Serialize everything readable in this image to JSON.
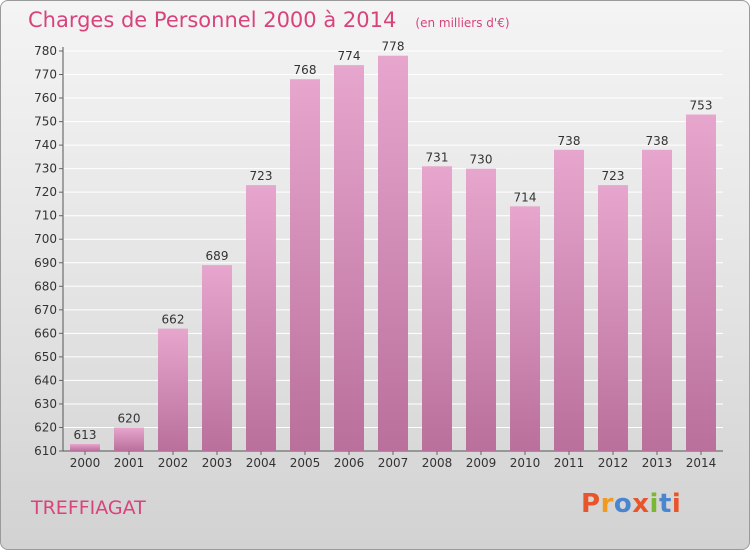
{
  "header": {
    "title": "Charges de Personnel 2000 à 2014",
    "subtitle": "(en milliers d'€)"
  },
  "footer": {
    "place": "TREFFIAGAT",
    "brand": "Proxiti"
  },
  "colors": {
    "title": "#d9437b",
    "bar_top": "#e7a6cd",
    "bar_bottom": "#b9709b",
    "grid": "#ffffff",
    "logo_letters": [
      "#e8552b",
      "#f29a1f",
      "#4a86d0",
      "#e8552b",
      "#7ab833",
      "#4a86d0",
      "#e8552b"
    ]
  },
  "chart_data": {
    "type": "bar",
    "title": "Charges de Personnel 2000 à 2014",
    "subtitle": "(en milliers d'€)",
    "xlabel": "",
    "ylabel": "",
    "categories": [
      "2000",
      "2001",
      "2002",
      "2003",
      "2004",
      "2005",
      "2006",
      "2007",
      "2008",
      "2009",
      "2010",
      "2011",
      "2012",
      "2013",
      "2014"
    ],
    "values": [
      613,
      620,
      662,
      689,
      723,
      768,
      774,
      778,
      731,
      730,
      714,
      738,
      723,
      738,
      753
    ],
    "ylim": [
      610,
      780
    ],
    "yticks": [
      610,
      620,
      630,
      640,
      650,
      660,
      670,
      680,
      690,
      700,
      710,
      720,
      730,
      740,
      750,
      760,
      770,
      780
    ],
    "grid": true
  }
}
